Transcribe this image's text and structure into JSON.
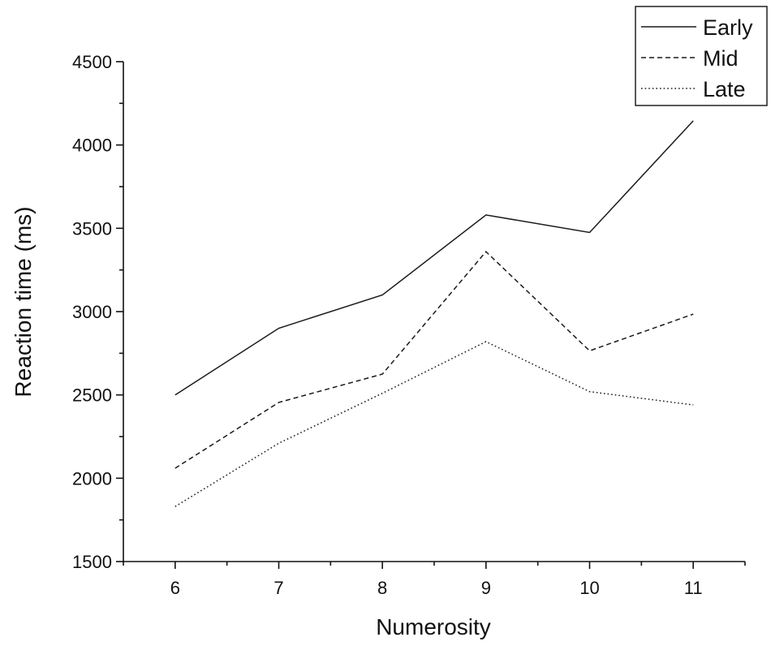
{
  "chart_data": {
    "type": "line",
    "title": "",
    "xlabel": "Numerosity",
    "ylabel": "Reaction  time (ms)",
    "x": [
      6,
      7,
      8,
      9,
      10,
      11
    ],
    "xlim": [
      5.5,
      11.5
    ],
    "ylim": [
      1500,
      4500
    ],
    "y_ticks": [
      1500,
      2000,
      2500,
      3000,
      3500,
      4000,
      4500
    ],
    "x_ticks": [
      6,
      7,
      8,
      9,
      10,
      11
    ],
    "grid": false,
    "legend_position": "top-right",
    "series": [
      {
        "name": "Early",
        "dash": "solid",
        "values": [
          2500,
          2900,
          3100,
          3580,
          3475,
          4145
        ]
      },
      {
        "name": "Mid",
        "dash": "dashed",
        "values": [
          2060,
          2455,
          2625,
          3360,
          2765,
          2985
        ]
      },
      {
        "name": "Late",
        "dash": "dotted",
        "values": [
          1830,
          2210,
          2510,
          2820,
          2520,
          2440
        ]
      }
    ]
  }
}
